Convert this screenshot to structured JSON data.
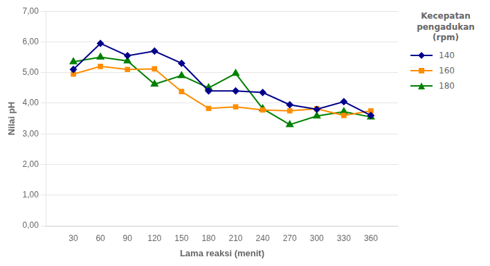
{
  "chart_data": {
    "type": "line",
    "x": [
      30,
      60,
      90,
      120,
      150,
      180,
      210,
      240,
      270,
      300,
      330,
      360
    ],
    "series": [
      {
        "name": "140",
        "color": "#00008B",
        "marker": "diamond",
        "values": [
          5.1,
          5.95,
          5.55,
          5.7,
          5.3,
          4.4,
          4.4,
          4.35,
          3.95,
          3.8,
          4.05,
          3.6
        ]
      },
      {
        "name": "160",
        "color": "#FF8C00",
        "marker": "square",
        "values": [
          4.95,
          5.2,
          5.1,
          5.12,
          4.38,
          3.83,
          3.88,
          3.78,
          3.75,
          3.82,
          3.6,
          3.75
        ]
      },
      {
        "name": "180",
        "color": "#008000",
        "marker": "triangle",
        "values": [
          5.35,
          5.5,
          5.38,
          4.62,
          4.9,
          4.5,
          4.97,
          3.82,
          3.3,
          3.58,
          3.72,
          3.55
        ]
      }
    ],
    "x_label": "Lama reaksi (menit)",
    "y_label": "Nilai pH",
    "legend_title": "Kecepatan\npengadukan\n(rpm)",
    "legend": "right",
    "xlim": [
      0,
      390
    ],
    "xticks": [
      30,
      60,
      90,
      120,
      150,
      180,
      210,
      240,
      270,
      300,
      330,
      360
    ],
    "ylim": [
      0.0,
      7.0
    ],
    "yticks": [
      {
        "value": 0,
        "label": "0,00"
      },
      {
        "value": 1,
        "label": "1,00"
      },
      {
        "value": 2,
        "label": "2,00"
      },
      {
        "value": 3,
        "label": "3,00"
      },
      {
        "value": 4,
        "label": "4,00"
      },
      {
        "value": 5,
        "label": "5,00"
      },
      {
        "value": 6,
        "label": "6,00"
      },
      {
        "value": 7,
        "label": "7,00"
      }
    ],
    "grid": "y"
  }
}
